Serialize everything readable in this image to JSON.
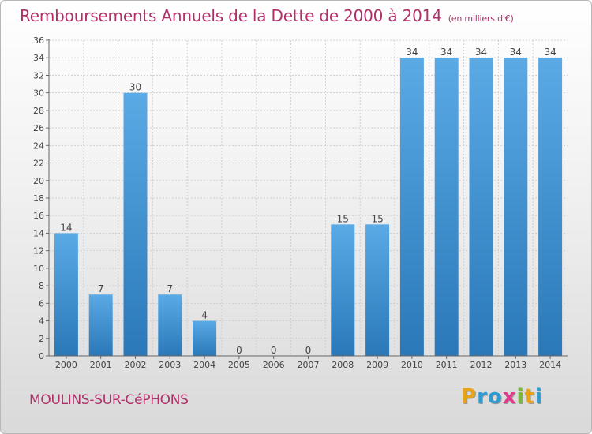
{
  "title": "Remboursements Annuels de la Dette de 2000 à 2014",
  "unit": "(en milliers d'€)",
  "commune": "MOULINS-SUR-CéPHONS",
  "logo": {
    "text": "Proxiti",
    "letter_colors": [
      "#e8a317",
      "#2e9ad0",
      "#2e9ad0",
      "#e03a8c",
      "#7ab83a",
      "#e8a317",
      "#2e9ad0"
    ]
  },
  "colors": {
    "title": "#b0306a",
    "bar_top": "#5aaae6",
    "bar_bottom": "#2a78b8",
    "grid": "#d0d0d0",
    "axis": "#666666",
    "text": "#444444"
  },
  "chart_data": {
    "type": "bar",
    "categories": [
      "2000",
      "2001",
      "2002",
      "2003",
      "2004",
      "2005",
      "2006",
      "2007",
      "2008",
      "2009",
      "2010",
      "2011",
      "2012",
      "2013",
      "2014"
    ],
    "values": [
      14,
      7,
      30,
      7,
      4,
      0,
      0,
      0,
      15,
      15,
      34,
      34,
      34,
      34,
      34
    ],
    "ylim": [
      0,
      36
    ],
    "yticks": [
      0,
      2,
      4,
      6,
      8,
      10,
      12,
      14,
      16,
      18,
      20,
      22,
      24,
      26,
      28,
      30,
      32,
      34,
      36
    ],
    "grid": true,
    "xlabel": "",
    "ylabel": ""
  }
}
